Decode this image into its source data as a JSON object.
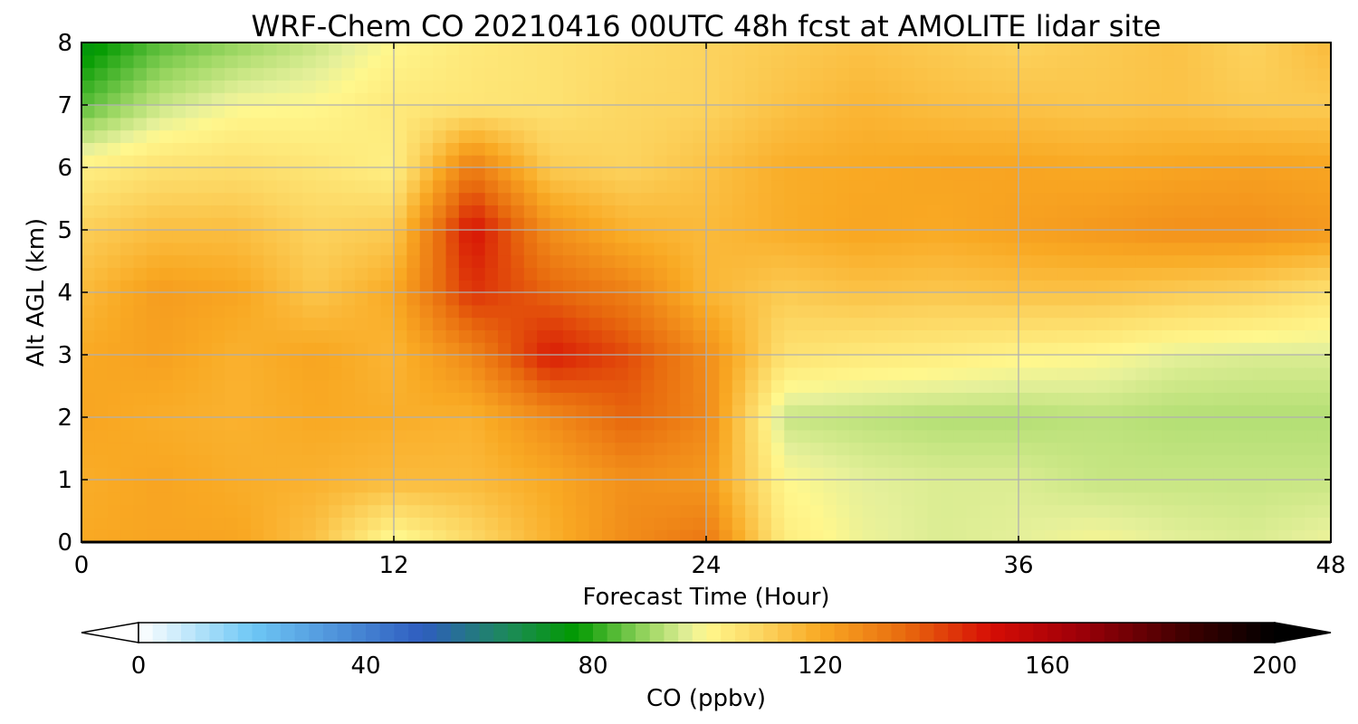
{
  "chart_data": {
    "type": "heatmap",
    "title": "WRF-Chem CO  20210416 00UTC 48h fcst at AMOLITE lidar site",
    "xlabel": "Forecast Time (Hour)",
    "ylabel": "Alt AGL (km)",
    "xlim": [
      0,
      48
    ],
    "ylim": [
      0,
      8
    ],
    "x_ticks": [
      "0",
      "12",
      "24",
      "36",
      "48"
    ],
    "y_ticks": [
      "0",
      "1",
      "2",
      "3",
      "4",
      "5",
      "6",
      "7",
      "8"
    ],
    "grid": true,
    "value_grid": {
      "x_hours": [
        0,
        3,
        6,
        9,
        12,
        15,
        18,
        21,
        24,
        27,
        30,
        33,
        36,
        39,
        42,
        45,
        48
      ],
      "y_km": [
        0,
        1,
        2,
        3,
        4,
        5,
        6,
        7,
        8
      ],
      "values_ppbv": [
        [
          120,
          121,
          121,
          114,
          98,
          108,
          118,
          127,
          132,
          103,
          98,
          96,
          97,
          99,
          97,
          96,
          98
        ],
        [
          119,
          121,
          119,
          118,
          116,
          116,
          120,
          126,
          124,
          100,
          97,
          96,
          96,
          94,
          94,
          94,
          94
        ],
        [
          121,
          119,
          118,
          120,
          119,
          118,
          127,
          136,
          128,
          94,
          93,
          92,
          92,
          93,
          92,
          92,
          92
        ],
        [
          120,
          122,
          118,
          121,
          117,
          128,
          148,
          140,
          127,
          106,
          104,
          103,
          101,
          100,
          97,
          96,
          96
        ],
        [
          116,
          123,
          121,
          113,
          120,
          144,
          136,
          130,
          117,
          112,
          114,
          113,
          114,
          114,
          112,
          110,
          106
        ],
        [
          111,
          115,
          115,
          110,
          112,
          150,
          126,
          118,
          116,
          119,
          121,
          120,
          122,
          124,
          126,
          126,
          124
        ],
        [
          102,
          106,
          107,
          105,
          102,
          131,
          112,
          110,
          114,
          119,
          120,
          121,
          121,
          120,
          121,
          122,
          121
        ],
        [
          84,
          94,
          99,
          100,
          104,
          105,
          106,
          109,
          110,
          114,
          117,
          115,
          114,
          113,
          114,
          112,
          112
        ],
        [
          74,
          84,
          89,
          94,
          100,
          104,
          106,
          108,
          110,
          112,
          114,
          112,
          110,
          112,
          114,
          110,
          116
        ]
      ]
    },
    "colorbar": {
      "label": "CO  (ppbv)",
      "ticks": [
        "0",
        "40",
        "80",
        "120",
        "160",
        "200"
      ],
      "min": 0,
      "max": 200,
      "extend": "both",
      "stops": [
        {
          "v": 0,
          "c": "#ffffff"
        },
        {
          "v": 20,
          "c": "#6ec7f5"
        },
        {
          "v": 50,
          "c": "#2e5dbf"
        },
        {
          "v": 65,
          "c": "#1d8a5a"
        },
        {
          "v": 77,
          "c": "#019a00"
        },
        {
          "v": 90,
          "c": "#9fd865"
        },
        {
          "v": 97,
          "c": "#e5f09a"
        },
        {
          "v": 100,
          "c": "#fff78d"
        },
        {
          "v": 110,
          "c": "#fcd35e"
        },
        {
          "v": 120,
          "c": "#f9a923"
        },
        {
          "v": 135,
          "c": "#e86a0e"
        },
        {
          "v": 150,
          "c": "#d60d05"
        },
        {
          "v": 165,
          "c": "#a10008"
        },
        {
          "v": 185,
          "c": "#3c0000"
        },
        {
          "v": 200,
          "c": "#000000"
        }
      ]
    }
  }
}
